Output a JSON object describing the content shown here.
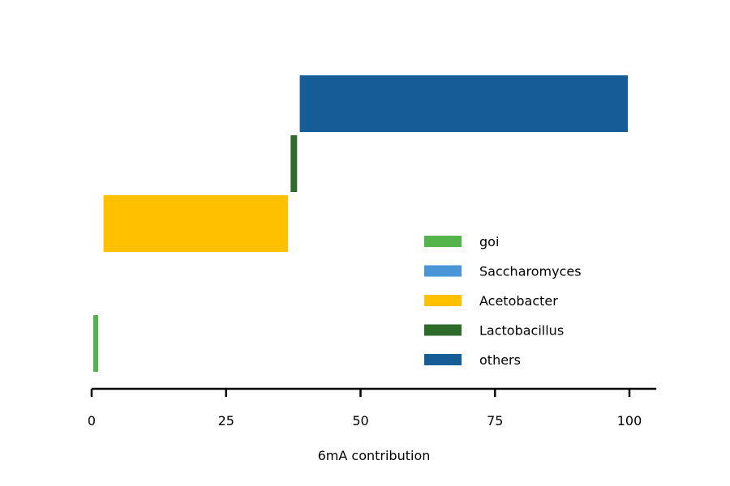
{
  "chart_data": {
    "type": "bar",
    "orientation": "horizontal",
    "stacked": true,
    "xlabel": "6mA contribution",
    "ylabel": "",
    "title": "",
    "xlim": [
      0,
      105
    ],
    "xticks": [
      0,
      25,
      50,
      75,
      100
    ],
    "yaxis_visible": false,
    "grid": false,
    "legend_position": "lower-right",
    "series": [
      {
        "name": "goi",
        "color": "#52b44a",
        "start": 0.3,
        "value": 0.9
      },
      {
        "name": "Saccharomyces",
        "color": "#4a94d8",
        "start": 1.2,
        "value": 0.0
      },
      {
        "name": "Acetobacter",
        "color": "#ffc000",
        "start": 2.2,
        "value": 34.3
      },
      {
        "name": "Lactobacillus",
        "color": "#2e6b2a",
        "start": 37.0,
        "value": 1.2
      },
      {
        "name": "others",
        "color": "#155d97",
        "start": 38.7,
        "value": 61.0
      }
    ]
  }
}
